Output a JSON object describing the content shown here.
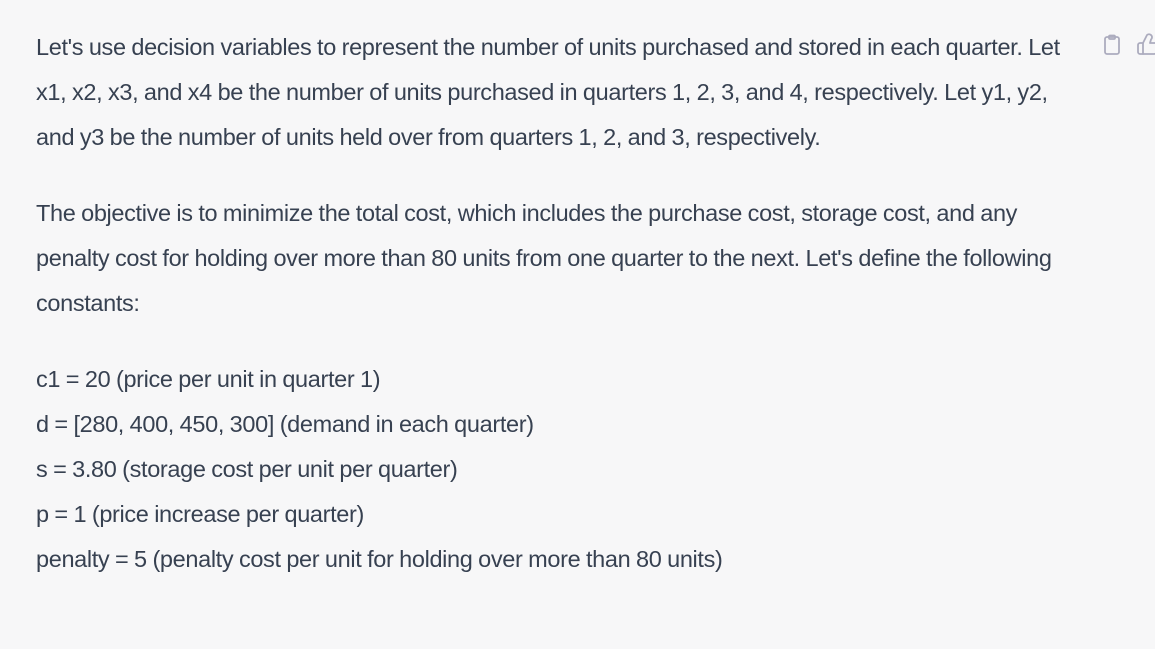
{
  "message": {
    "paragraphs": [
      "Let's use decision variables to represent the number of units purchased and stored in each quarter. Let x1, x2, x3, and x4 be the number of units purchased in quarters 1, 2, 3, and 4, respectively. Let y1, y2, and y3 be the number of units held over from quarters 1, 2, and 3, respectively.",
      "The objective is to minimize the total cost, which includes the purchase cost, storage cost, and any penalty cost for holding over more than 80 units from one quarter to the next. Let's define the following constants:"
    ],
    "constants": [
      "c1 = 20 (price per unit in quarter 1)",
      "d = [280, 400, 450, 300] (demand in each quarter)",
      "s = 3.80 (storage cost per unit per quarter)",
      "p = 1 (price increase per quarter)",
      "penalty = 5 (penalty cost per unit for holding over more than 80 units)"
    ]
  },
  "actions": {
    "copy_icon": "clipboard-icon",
    "thumb_icon": "thumbs-up-icon"
  }
}
